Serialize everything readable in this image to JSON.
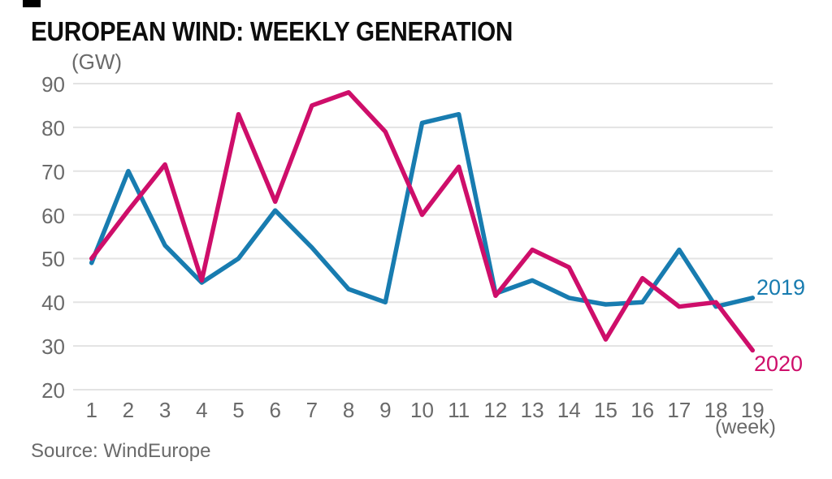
{
  "title": "EUROPEAN WIND: WEEKLY GENERATION",
  "y_unit_label": "(GW)",
  "x_unit_label": "(week)",
  "source_text": "Source: WindEurope",
  "colors": {
    "line_2019": "#187cb0",
    "line_2020": "#ce0e6a",
    "gridline": "#e3e3e3",
    "axis_text": "#6a6a6a",
    "title_text": "#0d0d0d"
  },
  "chart_data": {
    "type": "line",
    "title": "EUROPEAN WIND: WEEKLY GENERATION",
    "xlabel": "(week)",
    "ylabel": "(GW)",
    "x": [
      1,
      2,
      3,
      4,
      5,
      6,
      7,
      8,
      9,
      10,
      11,
      12,
      13,
      14,
      15,
      16,
      17,
      18,
      19
    ],
    "yticks": [
      90,
      80,
      70,
      60,
      50,
      40,
      30,
      20
    ],
    "ylim": [
      20,
      90
    ],
    "grid": "horizontal-only",
    "legend_position": "right-of-line-ends",
    "source": "Source: WindEurope",
    "series": [
      {
        "name": "2019",
        "color": "#187cb0",
        "values": [
          49,
          70,
          53,
          44.5,
          50,
          61,
          52.5,
          43,
          40,
          81,
          83,
          42,
          45,
          41,
          39.5,
          40,
          52,
          39,
          41
        ]
      },
      {
        "name": "2020",
        "color": "#ce0e6a",
        "values": [
          50,
          61,
          71.5,
          45,
          83,
          63,
          85,
          88,
          79,
          60,
          71,
          41.5,
          52,
          48,
          31.5,
          45.5,
          39,
          40,
          29
        ]
      }
    ]
  }
}
